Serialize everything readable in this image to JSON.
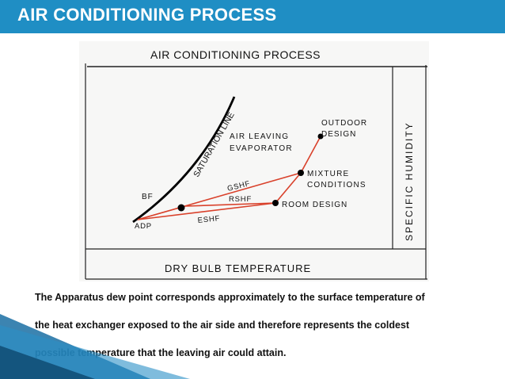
{
  "slide": {
    "title": "AIR CONDITIONING PROCESS"
  },
  "diagram": {
    "heading": "AIR CONDITIONING PROCESS",
    "x_axis_label": "DRY BULB TEMPERATURE",
    "y_axis_label": "SPECIFIC HUMIDITY",
    "saturation_line_label": "SATURATION LINE",
    "labels": {
      "outdoor_design_line1": "OUTDOOR",
      "outdoor_design_line2": "DESIGN",
      "air_leaving_line1": "AIR LEAVING",
      "air_leaving_line2": "EVAPORATOR",
      "mixture_line1": "MIXTURE",
      "mixture_line2": "CONDITIONS",
      "room_design": "ROOM DESIGN",
      "bf": "BF",
      "gshf": "GSHF",
      "rshf": "RSHF",
      "eshf": "ESHF",
      "adp": "ADP"
    },
    "colors": {
      "process_line": "#d9412b",
      "point": "#000000",
      "saturation_curve": "#000000"
    }
  },
  "caption": {
    "line1": "The Apparatus dew point corresponds approximately to the surface temperature of",
    "line2": "the heat exchanger exposed to the air side and therefore represents the coldest",
    "line3": "possible  temperature that the leaving air could attain."
  },
  "theme": {
    "title_bar_color": "#1f8ec4",
    "title_text_color": "#ffffff"
  }
}
